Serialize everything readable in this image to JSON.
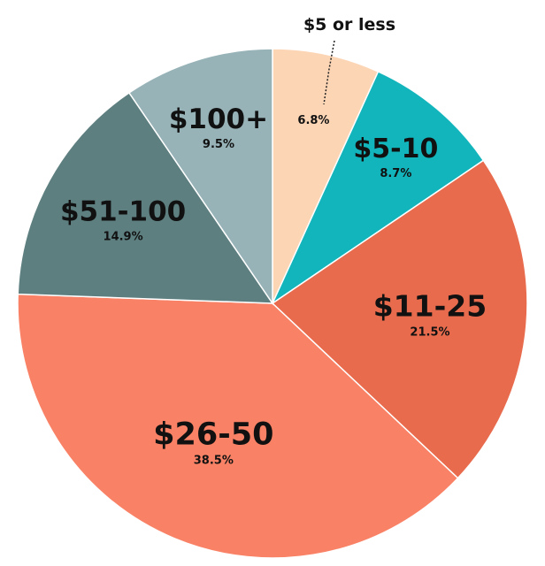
{
  "chart_data": {
    "type": "pie",
    "start_angle_deg": 0,
    "direction": "clockwise",
    "slices": [
      {
        "label": "$5 or less",
        "value": 6.8,
        "display": "6.8%",
        "color": "#FCD5B5"
      },
      {
        "label": "$5-10",
        "value": 8.7,
        "display": "8.7%",
        "color": "#12B5BC"
      },
      {
        "label": "$11-25",
        "value": 21.5,
        "display": "21.5%",
        "color": "#E86B4D"
      },
      {
        "label": "$26-50",
        "value": 38.5,
        "display": "38.5%",
        "color": "#F98165"
      },
      {
        "label": "$51-100",
        "value": 14.9,
        "display": "14.9%",
        "color": "#5E7F80"
      },
      {
        "label": "$100+",
        "value": 9.5,
        "display": "9.5%",
        "color": "#97B3B8"
      }
    ]
  }
}
